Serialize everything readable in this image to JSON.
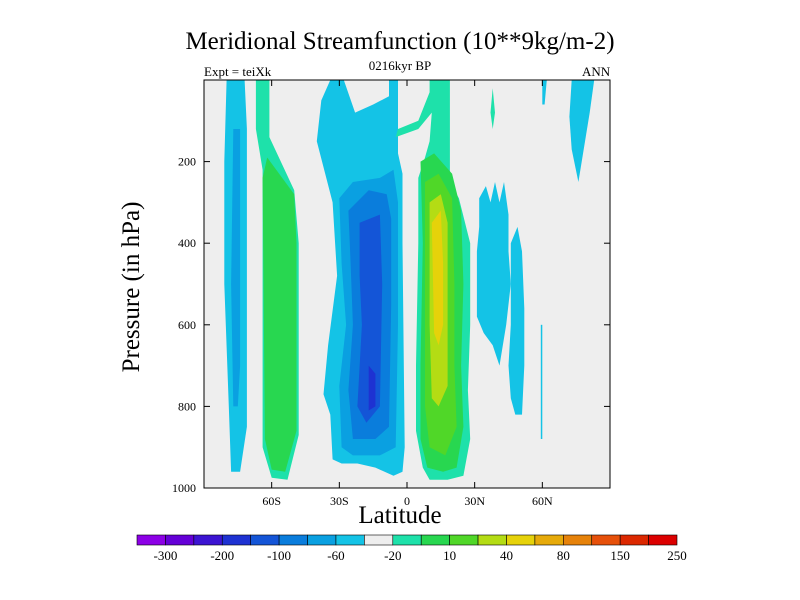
{
  "chart_data": {
    "type": "contour",
    "title": "Meridional Streamfunction (10**9kg/m-2)",
    "subtitle": "0216kyr BP",
    "left_annotation": "Expt = teiXk",
    "right_annotation": "ANN",
    "xlabel": "Latitude",
    "ylabel": "Pressure (in hPa)",
    "x_ticks": [
      {
        "value": -60,
        "label": "60S"
      },
      {
        "value": -30,
        "label": "30S"
      },
      {
        "value": 0,
        "label": "0"
      },
      {
        "value": 30,
        "label": "30N"
      },
      {
        "value": 60,
        "label": "60N"
      }
    ],
    "xlim": [
      -90,
      90
    ],
    "y_ticks": [
      200,
      400,
      600,
      800,
      1000
    ],
    "ylim": [
      0,
      1000
    ],
    "y_inverted": true,
    "colorbar": {
      "labels": [
        "-300",
        "-200",
        "-100",
        "-60",
        "-20",
        "10",
        "40",
        "80",
        "150",
        "250"
      ],
      "colors": [
        "#8c00e6",
        "#6400d7",
        "#3c14d2",
        "#1e32d2",
        "#1455d7",
        "#0a7ddc",
        "#0aa0e1",
        "#14c3e6",
        "#eeeeee",
        "#1ee1aa",
        "#28d750",
        "#50d728",
        "#b4dc14",
        "#e6d20a",
        "#e6aa0a",
        "#e6820a",
        "#e6500a",
        "#dc2800",
        "#dc0000"
      ]
    },
    "regions": [
      {
        "fill": "#14c3e6",
        "points": [
          [
            -80,
            0
          ],
          [
            -72,
            0
          ],
          [
            -71,
            120
          ],
          [
            -71,
            850
          ],
          [
            -74,
            960
          ],
          [
            -78,
            960
          ],
          [
            -79,
            800
          ],
          [
            -81,
            500
          ],
          [
            -81,
            200
          ]
        ]
      },
      {
        "fill": "#0aa0e1",
        "points": [
          [
            -77,
            120
          ],
          [
            -74,
            120
          ],
          [
            -74,
            700
          ],
          [
            -75,
            800
          ],
          [
            -77,
            800
          ],
          [
            -78,
            500
          ]
        ]
      },
      {
        "fill": "#1ee1aa",
        "points": [
          [
            -67,
            0
          ],
          [
            -61,
            0
          ],
          [
            -61,
            140
          ],
          [
            -50,
            270
          ],
          [
            -48,
            400
          ],
          [
            -48,
            870
          ],
          [
            -53,
            980
          ],
          [
            -60,
            975
          ],
          [
            -64,
            900
          ],
          [
            -64,
            220
          ],
          [
            -67,
            120
          ]
        ]
      },
      {
        "fill": "#28d750",
        "points": [
          [
            -64,
            240
          ],
          [
            -62,
            190
          ],
          [
            -50,
            280
          ],
          [
            -49,
            400
          ],
          [
            -49,
            860
          ],
          [
            -54,
            960
          ],
          [
            -60,
            955
          ],
          [
            -63,
            880
          ]
        ]
      },
      {
        "fill": "#14c3e6",
        "points": [
          [
            -34,
            0
          ],
          [
            -28,
            0
          ],
          [
            -23,
            80
          ],
          [
            -15,
            60
          ],
          [
            -8,
            40
          ],
          [
            -8,
            0
          ],
          [
            -4,
            0
          ],
          [
            -4,
            180
          ],
          [
            -2,
            230
          ],
          [
            -2,
            400
          ],
          [
            -1,
            900
          ],
          [
            -2,
            960
          ],
          [
            -6,
            970
          ],
          [
            -14,
            950
          ],
          [
            -22,
            940
          ],
          [
            -29,
            940
          ],
          [
            -33,
            930
          ],
          [
            -34,
            820
          ],
          [
            -37,
            770
          ],
          [
            -35,
            650
          ],
          [
            -31,
            480
          ],
          [
            -33,
            300
          ],
          [
            -40,
            150
          ],
          [
            -38,
            50
          ]
        ]
      },
      {
        "fill": "#0aa0e1",
        "points": [
          [
            -30,
            290
          ],
          [
            -24,
            250
          ],
          [
            -12,
            240
          ],
          [
            -6,
            220
          ],
          [
            -4,
            300
          ],
          [
            -4,
            600
          ],
          [
            -5,
            900
          ],
          [
            -12,
            920
          ],
          [
            -24,
            920
          ],
          [
            -29,
            900
          ],
          [
            -30,
            750
          ],
          [
            -27,
            600
          ],
          [
            -29,
            450
          ]
        ]
      },
      {
        "fill": "#0a7ddc",
        "points": [
          [
            -26,
            320
          ],
          [
            -17,
            270
          ],
          [
            -9,
            280
          ],
          [
            -7,
            340
          ],
          [
            -7,
            550
          ],
          [
            -8,
            850
          ],
          [
            -14,
            880
          ],
          [
            -24,
            880
          ],
          [
            -26,
            760
          ],
          [
            -24,
            600
          ],
          [
            -25,
            450
          ]
        ]
      },
      {
        "fill": "#1455d7",
        "points": [
          [
            -21,
            350
          ],
          [
            -12,
            330
          ],
          [
            -11,
            500
          ],
          [
            -12,
            800
          ],
          [
            -18,
            840
          ],
          [
            -22,
            800
          ],
          [
            -20,
            600
          ],
          [
            -21,
            480
          ]
        ]
      },
      {
        "fill": "#1e32d2",
        "points": [
          [
            -17,
            700
          ],
          [
            -14,
            720
          ],
          [
            -14,
            800
          ],
          [
            -17,
            810
          ]
        ]
      },
      {
        "fill": "#1ee1aa",
        "points": [
          [
            10,
            0
          ],
          [
            19,
            0
          ],
          [
            19,
            250
          ],
          [
            23,
            290
          ],
          [
            28,
            400
          ],
          [
            28,
            600
          ],
          [
            27,
            760
          ],
          [
            28,
            880
          ],
          [
            25,
            970
          ],
          [
            18,
            980
          ],
          [
            10,
            980
          ],
          [
            7,
            950
          ],
          [
            4,
            860
          ],
          [
            4,
            700
          ],
          [
            5,
            400
          ],
          [
            5,
            240
          ],
          [
            8,
            190
          ],
          [
            10,
            150
          ],
          [
            11,
            80
          ],
          [
            5,
            120
          ],
          [
            -5,
            140
          ],
          [
            -4,
            120
          ],
          [
            5,
            100
          ],
          [
            10,
            30
          ]
        ]
      },
      {
        "fill": "#28d750",
        "points": [
          [
            6,
            200
          ],
          [
            12,
            180
          ],
          [
            20,
            230
          ],
          [
            24,
            320
          ],
          [
            25,
            500
          ],
          [
            24,
            700
          ],
          [
            25,
            850
          ],
          [
            22,
            950
          ],
          [
            16,
            960
          ],
          [
            9,
            950
          ],
          [
            6,
            880
          ],
          [
            6,
            700
          ],
          [
            7,
            400
          ]
        ]
      },
      {
        "fill": "#50d728",
        "points": [
          [
            8,
            250
          ],
          [
            14,
            230
          ],
          [
            20,
            290
          ],
          [
            21,
            500
          ],
          [
            21,
            700
          ],
          [
            22,
            850
          ],
          [
            17,
            920
          ],
          [
            10,
            900
          ],
          [
            8,
            800
          ],
          [
            8,
            500
          ]
        ]
      },
      {
        "fill": "#b4dc14",
        "points": [
          [
            10,
            300
          ],
          [
            15,
            280
          ],
          [
            18,
            350
          ],
          [
            18,
            600
          ],
          [
            18,
            750
          ],
          [
            14,
            800
          ],
          [
            11,
            780
          ],
          [
            10,
            600
          ]
        ]
      },
      {
        "fill": "#e6d20a",
        "points": [
          [
            11,
            350
          ],
          [
            15,
            320
          ],
          [
            16,
            450
          ],
          [
            16,
            600
          ],
          [
            14,
            650
          ],
          [
            12,
            620
          ]
        ]
      },
      {
        "fill": "#14c3e6",
        "points": [
          [
            32,
            290
          ],
          [
            35,
            260
          ],
          [
            37,
            300
          ],
          [
            39,
            250
          ],
          [
            41,
            300
          ],
          [
            43,
            250
          ],
          [
            45,
            330
          ],
          [
            45,
            420
          ],
          [
            46,
            500
          ],
          [
            44,
            600
          ],
          [
            41,
            700
          ],
          [
            38,
            650
          ],
          [
            34,
            620
          ],
          [
            31,
            580
          ],
          [
            31,
            420
          ],
          [
            32,
            360
          ]
        ]
      },
      {
        "fill": "#14c3e6",
        "points": [
          [
            46,
            400
          ],
          [
            49,
            360
          ],
          [
            51,
            420
          ],
          [
            52,
            560
          ],
          [
            52,
            700
          ],
          [
            51,
            820
          ],
          [
            48,
            820
          ],
          [
            46,
            780
          ],
          [
            45,
            700
          ],
          [
            46,
            600
          ]
        ]
      },
      {
        "fill": "#14c3e6",
        "points": [
          [
            60,
            600
          ],
          [
            60,
            880
          ],
          [
            59.3,
            880
          ],
          [
            59.3,
            600
          ]
        ]
      },
      {
        "fill": "#14c3e6",
        "points": [
          [
            73,
            0
          ],
          [
            83,
            0
          ],
          [
            81,
            80
          ],
          [
            76,
            250
          ],
          [
            73,
            170
          ],
          [
            72,
            90
          ]
        ]
      },
      {
        "fill": "#14c3e6",
        "points": [
          [
            60,
            0
          ],
          [
            62,
            0
          ],
          [
            61,
            60
          ],
          [
            60,
            60
          ]
        ]
      },
      {
        "fill": "#1ee1aa",
        "points": [
          [
            37,
            80
          ],
          [
            38,
            20
          ],
          [
            39,
            80
          ],
          [
            38,
            120
          ]
        ]
      }
    ]
  }
}
